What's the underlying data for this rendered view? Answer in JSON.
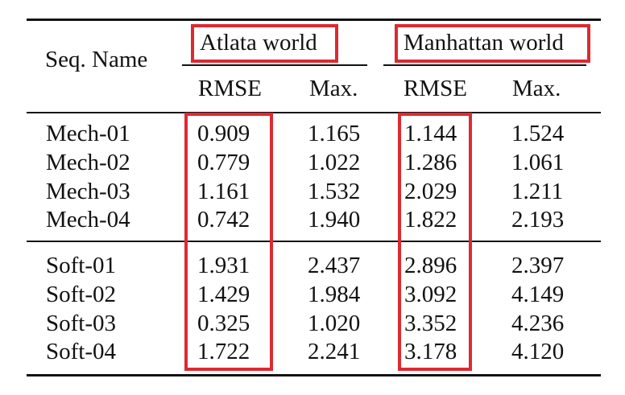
{
  "table": {
    "seq_header": "Seq. Name",
    "groups": [
      "Atlata world",
      "Manhattan world"
    ],
    "subheaders": [
      "RMSE",
      "Max.",
      "RMSE",
      "Max."
    ],
    "sections": [
      [
        {
          "name": "Mech-01",
          "values": [
            "0.909",
            "1.165",
            "1.144",
            "1.524"
          ]
        },
        {
          "name": "Mech-02",
          "values": [
            "0.779",
            "1.022",
            "1.286",
            "1.061"
          ]
        },
        {
          "name": "Mech-03",
          "values": [
            "1.161",
            "1.532",
            "2.029",
            "1.211"
          ]
        },
        {
          "name": "Mech-04",
          "values": [
            "0.742",
            "1.940",
            "1.822",
            "2.193"
          ]
        }
      ],
      [
        {
          "name": "Soft-01",
          "values": [
            "1.931",
            "2.437",
            "2.896",
            "2.397"
          ]
        },
        {
          "name": "Soft-02",
          "values": [
            "1.429",
            "1.984",
            "3.092",
            "4.149"
          ]
        },
        {
          "name": "Soft-03",
          "values": [
            "0.325",
            "1.020",
            "3.352",
            "4.236"
          ]
        },
        {
          "name": "Soft-04",
          "values": [
            "1.722",
            "2.241",
            "3.178",
            "4.120"
          ]
        }
      ]
    ]
  },
  "highlight_color": "#dd2a31"
}
